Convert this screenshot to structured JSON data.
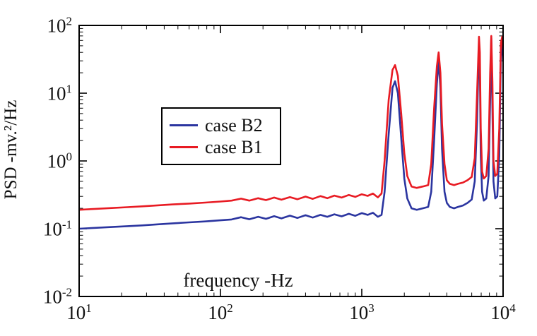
{
  "chart_data": {
    "type": "line",
    "title": "",
    "x_axis": {
      "label": "frequency -Hz",
      "scale": "log",
      "min": 10,
      "max": 10000,
      "ticks": [
        {
          "value": 10,
          "label": "10^1"
        },
        {
          "value": 100,
          "label": "10^2"
        },
        {
          "value": 1000,
          "label": "10^3"
        },
        {
          "value": 10000,
          "label": "10^4"
        }
      ]
    },
    "y_axis": {
      "label": "PSD -mv.²/Hz",
      "scale": "log",
      "min": 0.01,
      "max": 100,
      "ticks": [
        {
          "value": 100,
          "label": "10^2"
        },
        {
          "value": 10,
          "label": "10^1"
        },
        {
          "value": 1,
          "label": "10^0"
        },
        {
          "value": 0.1,
          "label": "10^-1"
        },
        {
          "value": 0.01,
          "label": "10^-2"
        }
      ]
    },
    "legend": {
      "position": "upper-left-inside",
      "entries": [
        {
          "label": "case B2",
          "color": "#2b35a0"
        },
        {
          "label": "case B1",
          "color": "#e81b23"
        }
      ]
    },
    "grid": "off",
    "series": [
      {
        "name": "case B2",
        "color": "#2b35a0",
        "width": 2.6,
        "points": [
          [
            10,
            0.1
          ],
          [
            13,
            0.103
          ],
          [
            17,
            0.106
          ],
          [
            22,
            0.109
          ],
          [
            28,
            0.112
          ],
          [
            36,
            0.116
          ],
          [
            46,
            0.12
          ],
          [
            60,
            0.124
          ],
          [
            78,
            0.128
          ],
          [
            100,
            0.133
          ],
          [
            120,
            0.137
          ],
          [
            140,
            0.148
          ],
          [
            160,
            0.138
          ],
          [
            185,
            0.15
          ],
          [
            210,
            0.14
          ],
          [
            240,
            0.153
          ],
          [
            270,
            0.142
          ],
          [
            310,
            0.156
          ],
          [
            350,
            0.144
          ],
          [
            400,
            0.158
          ],
          [
            450,
            0.146
          ],
          [
            510,
            0.16
          ],
          [
            570,
            0.15
          ],
          [
            640,
            0.163
          ],
          [
            720,
            0.152
          ],
          [
            810,
            0.166
          ],
          [
            900,
            0.155
          ],
          [
            1000,
            0.17
          ],
          [
            1100,
            0.16
          ],
          [
            1200,
            0.172
          ],
          [
            1300,
            0.15
          ],
          [
            1380,
            0.16
          ],
          [
            1450,
            0.35
          ],
          [
            1550,
            2.5
          ],
          [
            1650,
            12
          ],
          [
            1720,
            15
          ],
          [
            1800,
            10
          ],
          [
            1900,
            2.2
          ],
          [
            2000,
            0.55
          ],
          [
            2100,
            0.28
          ],
          [
            2250,
            0.2
          ],
          [
            2450,
            0.19
          ],
          [
            2700,
            0.2
          ],
          [
            2950,
            0.21
          ],
          [
            3100,
            0.35
          ],
          [
            3250,
            2.0
          ],
          [
            3400,
            14
          ],
          [
            3500,
            30
          ],
          [
            3600,
            12
          ],
          [
            3700,
            1.5
          ],
          [
            3850,
            0.35
          ],
          [
            4000,
            0.24
          ],
          [
            4200,
            0.21
          ],
          [
            4500,
            0.2
          ],
          [
            4800,
            0.21
          ],
          [
            5200,
            0.22
          ],
          [
            5600,
            0.24
          ],
          [
            6000,
            0.27
          ],
          [
            6300,
            0.5
          ],
          [
            6550,
            4
          ],
          [
            6750,
            55
          ],
          [
            6850,
            25
          ],
          [
            6950,
            1.2
          ],
          [
            7100,
            0.35
          ],
          [
            7300,
            0.26
          ],
          [
            7600,
            0.28
          ],
          [
            7900,
            0.6
          ],
          [
            8100,
            8
          ],
          [
            8250,
            65
          ],
          [
            8400,
            6
          ],
          [
            8550,
            0.5
          ],
          [
            8800,
            0.28
          ],
          [
            9100,
            0.3
          ],
          [
            9400,
            1.2
          ],
          [
            9650,
            35
          ],
          [
            9850,
            62
          ],
          [
            10000,
            30
          ]
        ]
      },
      {
        "name": "case B1",
        "color": "#e81b23",
        "width": 2.6,
        "points": [
          [
            10,
            0.19
          ],
          [
            13,
            0.196
          ],
          [
            17,
            0.202
          ],
          [
            22,
            0.208
          ],
          [
            28,
            0.214
          ],
          [
            36,
            0.221
          ],
          [
            46,
            0.228
          ],
          [
            60,
            0.235
          ],
          [
            78,
            0.243
          ],
          [
            100,
            0.252
          ],
          [
            120,
            0.26
          ],
          [
            140,
            0.278
          ],
          [
            160,
            0.26
          ],
          [
            185,
            0.282
          ],
          [
            210,
            0.264
          ],
          [
            240,
            0.288
          ],
          [
            270,
            0.268
          ],
          [
            310,
            0.293
          ],
          [
            350,
            0.272
          ],
          [
            400,
            0.298
          ],
          [
            450,
            0.276
          ],
          [
            510,
            0.303
          ],
          [
            570,
            0.282
          ],
          [
            640,
            0.308
          ],
          [
            720,
            0.288
          ],
          [
            810,
            0.315
          ],
          [
            900,
            0.295
          ],
          [
            1000,
            0.322
          ],
          [
            1100,
            0.305
          ],
          [
            1200,
            0.33
          ],
          [
            1300,
            0.29
          ],
          [
            1380,
            0.33
          ],
          [
            1450,
            1.0
          ],
          [
            1550,
            8
          ],
          [
            1650,
            22
          ],
          [
            1720,
            26
          ],
          [
            1800,
            18
          ],
          [
            1900,
            5
          ],
          [
            2000,
            1.3
          ],
          [
            2100,
            0.6
          ],
          [
            2250,
            0.42
          ],
          [
            2450,
            0.4
          ],
          [
            2700,
            0.42
          ],
          [
            2950,
            0.44
          ],
          [
            3100,
            0.9
          ],
          [
            3250,
            6
          ],
          [
            3400,
            25
          ],
          [
            3500,
            40
          ],
          [
            3600,
            20
          ],
          [
            3700,
            3.5
          ],
          [
            3850,
            0.9
          ],
          [
            4000,
            0.52
          ],
          [
            4200,
            0.46
          ],
          [
            4500,
            0.44
          ],
          [
            4800,
            0.46
          ],
          [
            5200,
            0.48
          ],
          [
            5600,
            0.52
          ],
          [
            6000,
            0.58
          ],
          [
            6300,
            1.1
          ],
          [
            6550,
            10
          ],
          [
            6750,
            68
          ],
          [
            6850,
            40
          ],
          [
            6950,
            3
          ],
          [
            7100,
            0.7
          ],
          [
            7300,
            0.55
          ],
          [
            7600,
            0.6
          ],
          [
            7900,
            1.5
          ],
          [
            8100,
            20
          ],
          [
            8250,
            70
          ],
          [
            8400,
            15
          ],
          [
            8550,
            1.0
          ],
          [
            8800,
            0.6
          ],
          [
            9100,
            0.65
          ],
          [
            9400,
            3
          ],
          [
            9650,
            55
          ],
          [
            9850,
            68
          ],
          [
            10000,
            45
          ]
        ]
      }
    ]
  }
}
